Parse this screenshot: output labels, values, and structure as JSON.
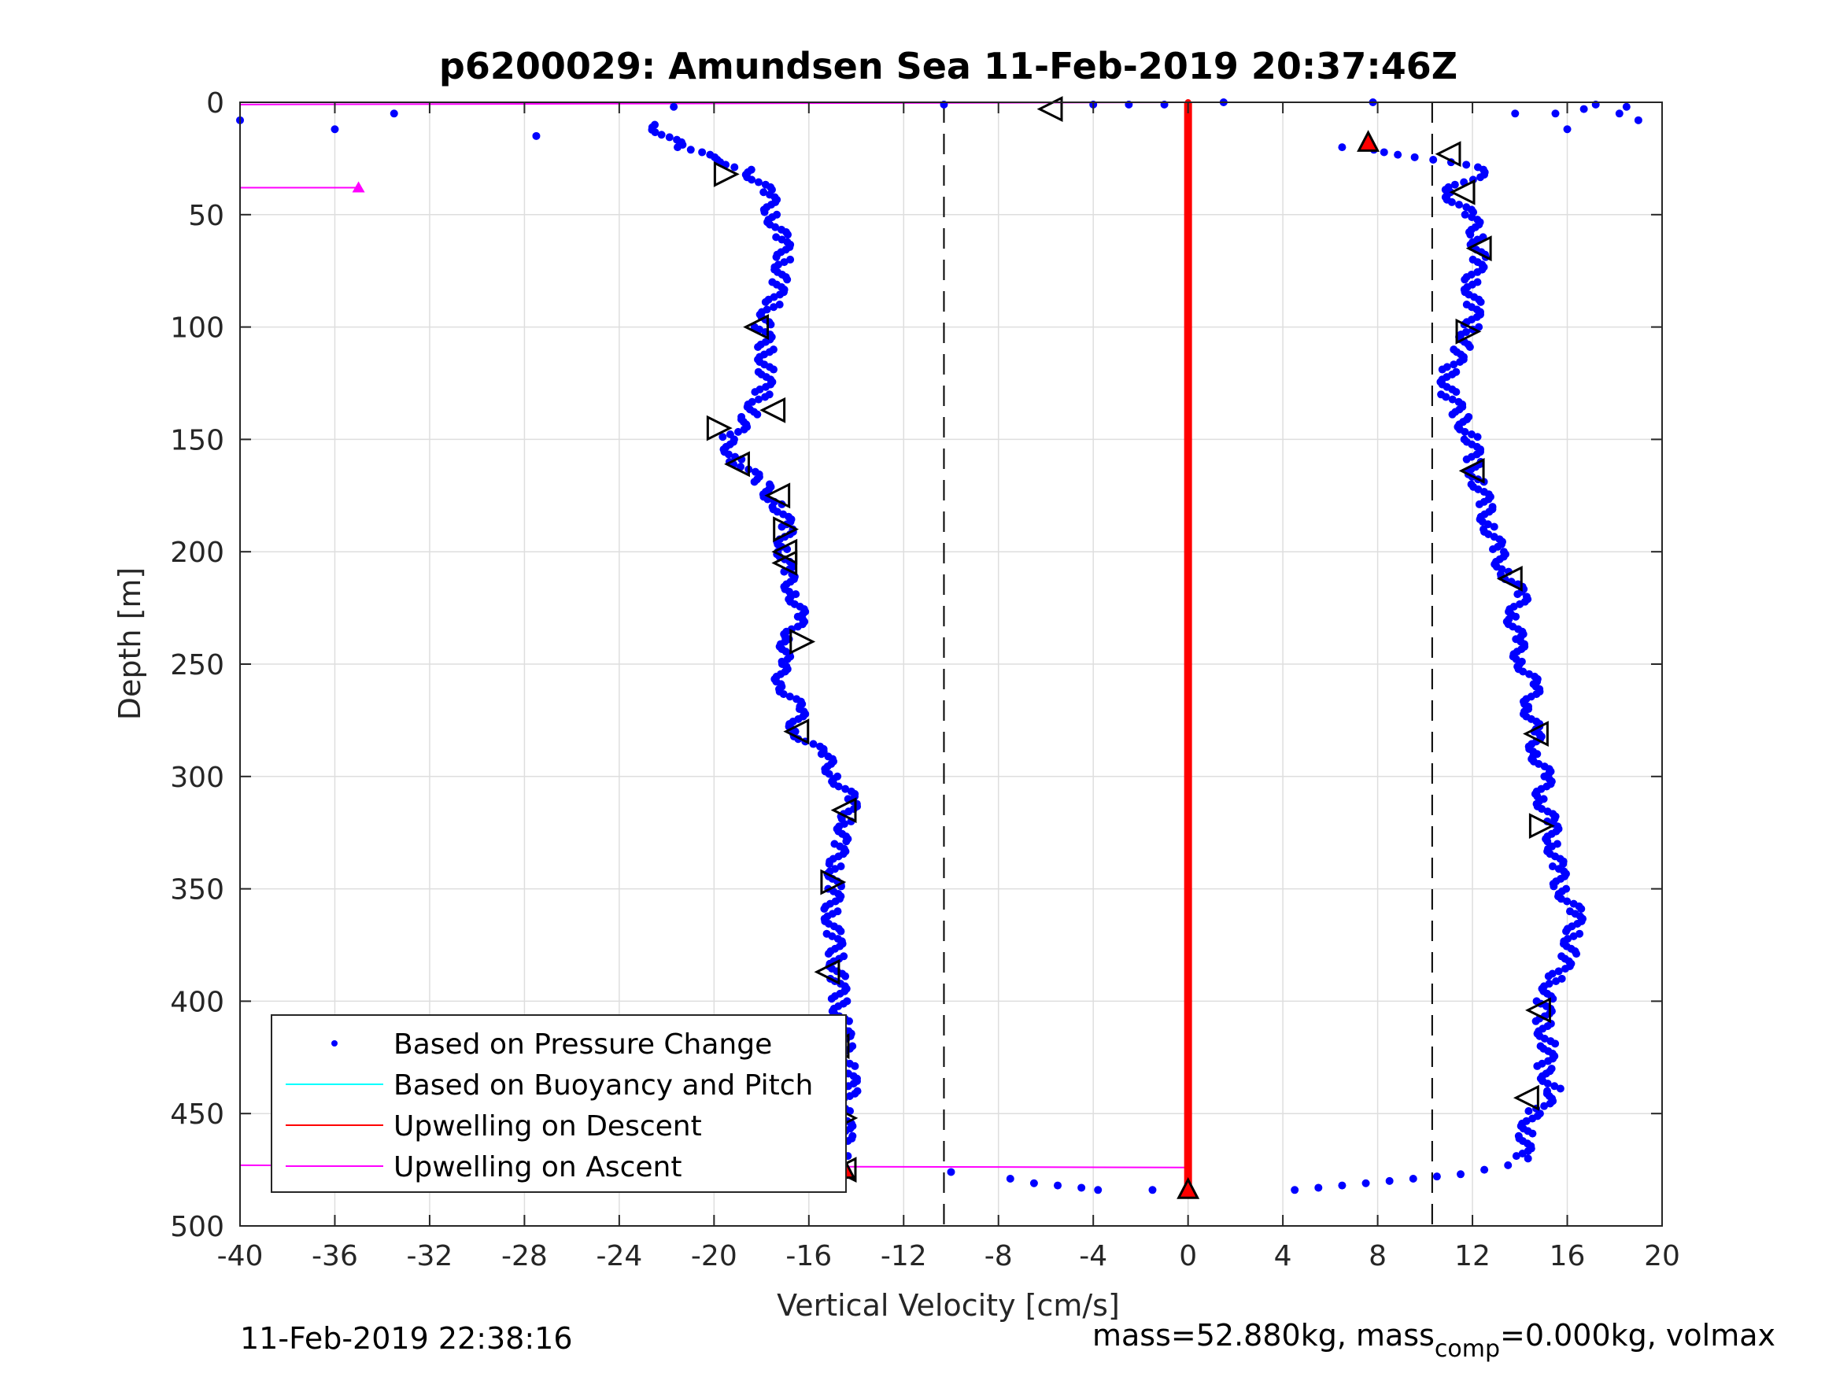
{
  "chart_data": {
    "type": "scatter",
    "title": "p6200029: Amundsen Sea 11-Feb-2019 20:37:46Z",
    "xlabel": "Vertical Velocity [cm/s]",
    "ylabel": "Depth [m]",
    "xlim": [
      -40,
      20
    ],
    "ylim": [
      0,
      500
    ],
    "y_reversed": true,
    "grid": true,
    "x_ticks": [
      -40,
      -36,
      -32,
      -28,
      -24,
      -20,
      -16,
      -12,
      -8,
      -4,
      0,
      4,
      8,
      12,
      16,
      20
    ],
    "x_tick_labels": [
      "-40",
      "-36",
      "-32",
      "-28",
      "-24",
      "-20",
      "-16",
      "-12",
      "-8",
      "-4",
      "0",
      "4",
      "8",
      "12",
      "16",
      "20"
    ],
    "y_ticks": [
      0,
      50,
      100,
      150,
      200,
      250,
      300,
      350,
      400,
      450,
      500
    ],
    "y_tick_labels": [
      "0",
      "50",
      "100",
      "150",
      "200",
      "250",
      "300",
      "350",
      "400",
      "450",
      "500"
    ],
    "legend": {
      "placement": "bottom-left",
      "entries": [
        {
          "label": "Based on Pressure Change",
          "color": "#0000ff",
          "style": "dot"
        },
        {
          "label": "Based on Buoyancy and Pitch",
          "color": "#00ffff",
          "style": "line"
        },
        {
          "label": "Upwelling on Descent",
          "color": "#ff0000",
          "style": "line"
        },
        {
          "label": "Upwelling on Ascent",
          "color": "#ff00ff",
          "style": "line"
        }
      ]
    },
    "reference_lines_x": [
      -10.3,
      10.3
    ],
    "descent_profile_pressure": {
      "color": "#0000ff",
      "depth": [
        10,
        20,
        30,
        40,
        50,
        60,
        70,
        80,
        90,
        100,
        110,
        120,
        130,
        140,
        150,
        160,
        170,
        180,
        190,
        200,
        210,
        220,
        230,
        240,
        250,
        260,
        270,
        280,
        290,
        300,
        310,
        320,
        330,
        340,
        350,
        360,
        370,
        380,
        390,
        400,
        410,
        420,
        430,
        440,
        450,
        460,
        470
      ],
      "velocity": [
        -22.5,
        -21.5,
        -18.5,
        -17.8,
        -17.5,
        -17.2,
        -17.0,
        -17.3,
        -17.5,
        -18.0,
        -17.8,
        -17.8,
        -18.0,
        -18.5,
        -19.5,
        -19.0,
        -18.0,
        -17.2,
        -17.0,
        -17.0,
        -17.0,
        -16.5,
        -16.5,
        -16.8,
        -17.3,
        -17.0,
        -16.5,
        -16.5,
        -15.5,
        -14.8,
        -14.3,
        -14.3,
        -14.8,
        -14.8,
        -15.0,
        -15.0,
        -15.0,
        -14.8,
        -14.8,
        -14.7,
        -14.6,
        -14.5,
        -14.3,
        -14.3,
        -14.5,
        -14.5,
        -14.5
      ]
    },
    "ascent_profile_pressure": {
      "color": "#0000ff",
      "depth": [
        20,
        30,
        40,
        50,
        60,
        70,
        80,
        90,
        100,
        110,
        120,
        130,
        140,
        150,
        160,
        170,
        180,
        190,
        200,
        210,
        220,
        230,
        240,
        250,
        260,
        270,
        280,
        290,
        300,
        310,
        320,
        330,
        340,
        350,
        360,
        370,
        380,
        390,
        400,
        410,
        420,
        430,
        440,
        450,
        460,
        470
      ],
      "velocity": [
        7.5,
        12.5,
        11.0,
        11.8,
        12.3,
        12.2,
        12.0,
        12.0,
        12.0,
        11.5,
        11.0,
        11.0,
        11.5,
        12.0,
        12.0,
        12.3,
        12.5,
        12.8,
        13.0,
        13.5,
        14.0,
        13.8,
        13.8,
        14.2,
        14.5,
        14.5,
        14.5,
        14.8,
        15.0,
        15.0,
        15.2,
        15.5,
        15.5,
        15.8,
        16.3,
        16.3,
        16.0,
        15.5,
        15.0,
        15.0,
        15.2,
        15.0,
        15.5,
        14.5,
        14.3,
        14.0
      ]
    },
    "surface_scatter": {
      "color": "#0000ff",
      "x": [
        -40,
        -36,
        -33.5,
        -27.5,
        -21.7,
        -10.3,
        -4,
        -2.5,
        -1,
        1.5,
        7.8,
        13.8,
        15.5,
        16.7,
        17.2,
        18.5,
        19.0,
        18.2,
        16.0,
        6.5
      ],
      "y": [
        8,
        12,
        5,
        15,
        2,
        1,
        1,
        1,
        1,
        0,
        0,
        5,
        5,
        3,
        1,
        2,
        8,
        5,
        12,
        20
      ]
    },
    "bottom_scatter": {
      "color": "#0000ff",
      "x": [
        -10,
        -7.5,
        -6.5,
        -5.5,
        -4.5,
        -3.8,
        -1.5,
        4.5,
        5.5,
        6.5,
        7.5,
        8.5,
        9.5,
        10.5,
        11.5,
        12.5,
        13.5
      ],
      "y": [
        476,
        479,
        481,
        482,
        483,
        484,
        484,
        484,
        483,
        482,
        481,
        480,
        479,
        478,
        477,
        475,
        473
      ]
    },
    "upwelling_descent_model": {
      "color": "#ff0000",
      "x": [
        0,
        0
      ],
      "y": [
        0,
        485
      ]
    },
    "upwelling_ascent_lines": {
      "color": "#ff00ff",
      "segments": [
        {
          "x": [
            -40,
            0
          ],
          "y": [
            1,
            0
          ]
        },
        {
          "x": [
            -40,
            -35
          ],
          "y": [
            38,
            38
          ]
        },
        {
          "x": [
            -40,
            0
          ],
          "y": [
            473,
            474
          ]
        }
      ]
    },
    "buoyancy_pitch_markers": {
      "style": "open-triangle",
      "descent": {
        "x": [
          -5.8,
          -19.5,
          -18.2,
          -17.5,
          -19.8,
          -19.0,
          -17.3,
          -17.0,
          -17.0,
          -17.0,
          -16.3,
          -16.5,
          -14.5,
          -15.0,
          -15.2,
          -14.8,
          -14.5,
          -14.5
        ],
        "y": [
          3,
          32,
          100,
          137,
          145,
          161,
          175,
          190,
          200,
          205,
          240,
          280,
          315,
          347,
          387,
          420,
          452,
          475
        ]
      },
      "ascent": {
        "x": [
          11.0,
          11.6,
          12.3,
          11.8,
          12.0,
          13.6,
          14.7,
          14.9,
          14.8,
          14.3
        ],
        "y": [
          23,
          40,
          65,
          102,
          164,
          212,
          281,
          322,
          404,
          443
        ]
      }
    },
    "red_filled_markers": {
      "x": [
        7.6,
        -14.5,
        0
      ],
      "y": [
        18,
        475,
        484
      ]
    }
  },
  "footer": {
    "timestamp": "11-Feb-2019 22:38:16",
    "mass_text": "mass=52.880kg, mass",
    "mass_sub": "comp",
    "mass_rest": "=0.000kg, volmax"
  }
}
